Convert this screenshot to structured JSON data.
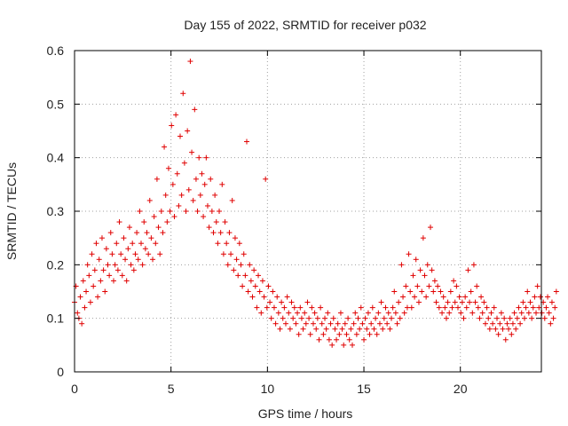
{
  "chart_data": {
    "type": "scatter",
    "title": "Day 155 of 2022, SRMTID for receiver p032",
    "xlabel": "GPS time / hours",
    "ylabel": "SRMTID / TECUs",
    "xlim": [
      0,
      24.2
    ],
    "ylim": [
      0,
      0.6
    ],
    "xticks": [
      0,
      5,
      10,
      15,
      20
    ],
    "xtick_labels": [
      "0",
      "5",
      "10",
      "15",
      "20"
    ],
    "yticks": [
      0,
      0.1,
      0.2,
      0.3,
      0.4,
      0.5,
      0.6
    ],
    "ytick_labels": [
      "0",
      "0.1",
      "0.2",
      "0.3",
      "0.4",
      "0.5",
      "0.6"
    ],
    "grid": true,
    "marker": "+",
    "marker_color": "#e00000",
    "series": [
      {
        "name": "SRMTID",
        "x_start": 0.0,
        "x_step": 0.075,
        "y": [
          0.13,
          0.16,
          0.11,
          0.1,
          0.14,
          0.09,
          0.17,
          0.12,
          0.15,
          0.2,
          0.18,
          0.13,
          0.22,
          0.16,
          0.19,
          0.24,
          0.14,
          0.21,
          0.17,
          0.25,
          0.19,
          0.15,
          0.23,
          0.2,
          0.18,
          0.26,
          0.22,
          0.17,
          0.2,
          0.24,
          0.19,
          0.28,
          0.22,
          0.18,
          0.25,
          0.21,
          0.17,
          0.23,
          0.27,
          0.2,
          0.24,
          0.19,
          0.22,
          0.26,
          0.21,
          0.3,
          0.24,
          0.2,
          0.28,
          0.23,
          0.26,
          0.22,
          0.32,
          0.25,
          0.21,
          0.29,
          0.24,
          0.36,
          0.27,
          0.22,
          0.3,
          0.26,
          0.42,
          0.33,
          0.28,
          0.38,
          0.3,
          0.46,
          0.35,
          0.29,
          0.48,
          0.37,
          0.31,
          0.44,
          0.33,
          0.52,
          0.39,
          0.3,
          0.45,
          0.34,
          0.58,
          0.41,
          0.32,
          0.49,
          0.36,
          0.3,
          0.4,
          0.33,
          0.37,
          0.29,
          0.35,
          0.4,
          0.31,
          0.27,
          0.36,
          0.3,
          0.26,
          0.33,
          0.28,
          0.24,
          0.3,
          0.26,
          0.35,
          0.22,
          0.28,
          0.24,
          0.2,
          0.26,
          0.22,
          0.32,
          0.19,
          0.25,
          0.21,
          0.18,
          0.24,
          0.2,
          0.16,
          0.22,
          0.18,
          0.43,
          0.15,
          0.2,
          0.17,
          0.14,
          0.19,
          0.16,
          0.12,
          0.18,
          0.15,
          0.11,
          0.17,
          0.14,
          0.36,
          0.12,
          0.16,
          0.13,
          0.1,
          0.15,
          0.12,
          0.09,
          0.14,
          0.11,
          0.08,
          0.13,
          0.1,
          0.12,
          0.09,
          0.14,
          0.11,
          0.08,
          0.13,
          0.1,
          0.12,
          0.09,
          0.11,
          0.07,
          0.12,
          0.1,
          0.08,
          0.11,
          0.09,
          0.13,
          0.1,
          0.07,
          0.12,
          0.09,
          0.11,
          0.08,
          0.1,
          0.06,
          0.12,
          0.09,
          0.07,
          0.1,
          0.08,
          0.11,
          0.06,
          0.09,
          0.05,
          0.1,
          0.08,
          0.06,
          0.09,
          0.07,
          0.11,
          0.08,
          0.05,
          0.09,
          0.07,
          0.1,
          0.06,
          0.08,
          0.05,
          0.09,
          0.11,
          0.07,
          0.1,
          0.08,
          0.12,
          0.09,
          0.06,
          0.1,
          0.08,
          0.11,
          0.07,
          0.09,
          0.12,
          0.08,
          0.1,
          0.07,
          0.11,
          0.09,
          0.13,
          0.08,
          0.1,
          0.12,
          0.09,
          0.11,
          0.08,
          0.1,
          0.12,
          0.15,
          0.11,
          0.09,
          0.13,
          0.1,
          0.2,
          0.14,
          0.11,
          0.16,
          0.12,
          0.22,
          0.15,
          0.12,
          0.18,
          0.14,
          0.21,
          0.16,
          0.13,
          0.19,
          0.15,
          0.25,
          0.18,
          0.14,
          0.2,
          0.16,
          0.27,
          0.19,
          0.15,
          0.17,
          0.13,
          0.16,
          0.12,
          0.15,
          0.11,
          0.14,
          0.12,
          0.1,
          0.13,
          0.11,
          0.15,
          0.12,
          0.17,
          0.13,
          0.16,
          0.12,
          0.14,
          0.11,
          0.13,
          0.1,
          0.14,
          0.12,
          0.19,
          0.13,
          0.15,
          0.11,
          0.2,
          0.13,
          0.16,
          0.12,
          0.1,
          0.14,
          0.11,
          0.13,
          0.09,
          0.12,
          0.1,
          0.08,
          0.11,
          0.09,
          0.12,
          0.08,
          0.1,
          0.07,
          0.09,
          0.11,
          0.08,
          0.1,
          0.06,
          0.09,
          0.08,
          0.1,
          0.07,
          0.09,
          0.11,
          0.08,
          0.1,
          0.12,
          0.09,
          0.11,
          0.13,
          0.1,
          0.12,
          0.15,
          0.11,
          0.13,
          0.1,
          0.12,
          0.14,
          0.11,
          0.16,
          0.12,
          0.14,
          0.11,
          0.13,
          0.1,
          0.12,
          0.14,
          0.11,
          0.09,
          0.13,
          0.1,
          0.12,
          0.15
        ]
      }
    ]
  }
}
